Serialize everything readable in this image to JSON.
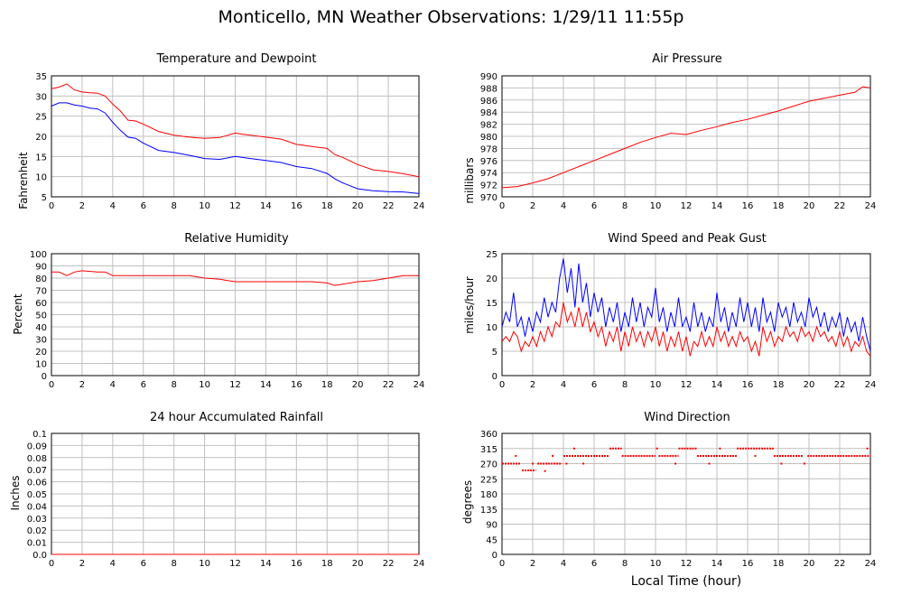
{
  "title": "Monticello, MN Weather Observations: 1/29/11 11:55p",
  "xaxis_label": "Local Time (hour)",
  "colors": {
    "primary_series": "#ff0000",
    "secondary_series": "#0000ff",
    "grid": "#c0c0c0"
  },
  "chart_data": [
    {
      "type": "line",
      "title": "Temperature and Dewpoint",
      "ylabel": "Fahrenheit",
      "xlabel": "",
      "xlim": [
        0,
        24
      ],
      "ylim": [
        5,
        35
      ],
      "xticks": [
        0,
        2,
        4,
        6,
        8,
        10,
        12,
        14,
        16,
        18,
        20,
        22,
        24
      ],
      "yticks": [
        5,
        10,
        15,
        20,
        25,
        30,
        35
      ],
      "grid": true,
      "series": [
        {
          "color": "#ff0000",
          "x": [
            0,
            0.5,
            1,
            1.5,
            2,
            2.5,
            3,
            3.5,
            4,
            4.5,
            5,
            5.5,
            6,
            7,
            8,
            9,
            10,
            11,
            12,
            12.5,
            13,
            14,
            15,
            16,
            17,
            18,
            18.5,
            19,
            20,
            21,
            22,
            23,
            24
          ],
          "values": [
            31.8,
            32.2,
            33,
            31.5,
            31,
            30.8,
            30.7,
            30,
            28,
            26.3,
            24,
            23.8,
            23,
            21.2,
            20.3,
            19.8,
            19.5,
            19.7,
            20.8,
            20.5,
            20.3,
            19.8,
            19.3,
            18,
            17.5,
            17,
            15.5,
            14.8,
            13,
            11.7,
            11.3,
            10.7,
            10
          ]
        },
        {
          "color": "#0000ff",
          "x": [
            0,
            0.5,
            1,
            1.5,
            2,
            2.5,
            3,
            3.5,
            4,
            4.5,
            5,
            5.5,
            6,
            7,
            8,
            9,
            10,
            11,
            12,
            13,
            14,
            15,
            16,
            17,
            18,
            18.5,
            19,
            20,
            21,
            22,
            23,
            24
          ],
          "values": [
            27.5,
            28.3,
            28.3,
            27.8,
            27.5,
            27,
            26.8,
            25.8,
            23.5,
            21.5,
            19.8,
            19.5,
            18.3,
            16.5,
            16,
            15.3,
            14.5,
            14.3,
            15,
            14.5,
            14,
            13.5,
            12.5,
            12,
            10.8,
            9.5,
            8.5,
            7,
            6.5,
            6.3,
            6.2,
            5.8
          ]
        }
      ]
    },
    {
      "type": "line",
      "title": "Air Pressure",
      "ylabel": "millibars",
      "xlabel": "",
      "xlim": [
        0,
        24
      ],
      "ylim": [
        970,
        990
      ],
      "xticks": [
        0,
        2,
        4,
        6,
        8,
        10,
        12,
        14,
        16,
        18,
        20,
        22,
        24
      ],
      "yticks": [
        970,
        972,
        974,
        976,
        978,
        980,
        982,
        984,
        986,
        988,
        990
      ],
      "grid": true,
      "series": [
        {
          "color": "#ff0000",
          "x": [
            0,
            1,
            2,
            3,
            4,
            5,
            6,
            7,
            8,
            9,
            10,
            11,
            12,
            13,
            14,
            15,
            16,
            17,
            18,
            19,
            20,
            21,
            22,
            23,
            23.5,
            24
          ],
          "values": [
            971.5,
            971.7,
            972.3,
            973,
            974,
            975,
            976,
            977,
            978,
            979,
            979.8,
            980.5,
            980.3,
            981,
            981.6,
            982.3,
            982.8,
            983.5,
            984.2,
            985,
            985.8,
            986.3,
            986.8,
            987.3,
            988.2,
            988
          ]
        }
      ]
    },
    {
      "type": "line",
      "title": "Relative Humidity",
      "ylabel": "Percent",
      "xlabel": "",
      "xlim": [
        0,
        24
      ],
      "ylim": [
        0,
        100
      ],
      "xticks": [
        0,
        2,
        4,
        6,
        8,
        10,
        12,
        14,
        16,
        18,
        20,
        22,
        24
      ],
      "yticks": [
        0,
        10,
        20,
        30,
        40,
        50,
        60,
        70,
        80,
        90,
        100
      ],
      "grid": true,
      "series": [
        {
          "color": "#ff0000",
          "x": [
            0,
            0.5,
            1,
            1.5,
            2,
            3,
            3.5,
            4,
            5,
            6,
            7,
            8,
            9,
            10,
            11,
            11.5,
            12,
            13,
            14,
            15,
            16,
            17,
            18,
            18.5,
            19,
            20,
            21,
            22,
            23,
            24
          ],
          "values": [
            85,
            85,
            82,
            85,
            86,
            85,
            85,
            82,
            82,
            82,
            82,
            82,
            82,
            80,
            79,
            78,
            77,
            77,
            77,
            77,
            77,
            77,
            76,
            74,
            75,
            77,
            78,
            80,
            82,
            82
          ]
        }
      ]
    },
    {
      "type": "line",
      "title": "Wind Speed and Peak Gust",
      "ylabel": "miles/hour",
      "xlabel": "",
      "xlim": [
        0,
        24
      ],
      "ylim": [
        0,
        25
      ],
      "xticks": [
        0,
        2,
        4,
        6,
        8,
        10,
        12,
        14,
        16,
        18,
        20,
        22,
        24
      ],
      "yticks": [
        0,
        5,
        10,
        15,
        20,
        25
      ],
      "grid": true,
      "series": [
        {
          "color": "#0000ff",
          "x": [
            0,
            0.25,
            0.5,
            0.75,
            1,
            1.25,
            1.5,
            1.75,
            2,
            2.25,
            2.5,
            2.75,
            3,
            3.25,
            3.5,
            3.75,
            4,
            4.25,
            4.5,
            4.75,
            5,
            5.25,
            5.5,
            5.75,
            6,
            6.25,
            6.5,
            6.75,
            7,
            7.25,
            7.5,
            7.75,
            8,
            8.25,
            8.5,
            8.75,
            9,
            9.25,
            9.5,
            9.75,
            10,
            10.25,
            10.5,
            10.75,
            11,
            11.25,
            11.5,
            11.75,
            12,
            12.25,
            12.5,
            12.75,
            13,
            13.25,
            13.5,
            13.75,
            14,
            14.25,
            14.5,
            14.75,
            15,
            15.25,
            15.5,
            15.75,
            16,
            16.25,
            16.5,
            16.75,
            17,
            17.25,
            17.5,
            17.75,
            18,
            18.25,
            18.5,
            18.75,
            19,
            19.25,
            19.5,
            19.75,
            20,
            20.25,
            20.5,
            20.75,
            21,
            21.25,
            21.5,
            21.75,
            22,
            22.25,
            22.5,
            22.75,
            23,
            23.25,
            23.5,
            23.75,
            24
          ],
          "values": [
            10,
            13,
            11,
            17,
            10,
            12,
            8,
            12,
            9,
            13,
            11,
            16,
            12,
            15,
            13,
            20,
            24,
            17,
            22,
            14,
            23,
            15,
            19,
            12,
            17,
            13,
            16,
            10,
            14,
            11,
            15,
            9,
            13,
            10,
            16,
            11,
            15,
            10,
            14,
            12,
            18,
            11,
            14,
            9,
            13,
            10,
            16,
            10,
            12,
            9,
            15,
            10,
            13,
            9,
            12,
            10,
            17,
            11,
            14,
            9,
            13,
            10,
            16,
            11,
            15,
            10,
            14,
            9,
            16,
            11,
            13,
            9,
            15,
            12,
            14,
            10,
            15,
            11,
            13,
            10,
            16,
            12,
            14,
            10,
            13,
            9,
            12,
            10,
            13,
            8,
            12,
            9,
            11,
            7,
            12,
            8,
            5
          ]
        },
        {
          "color": "#ff0000",
          "x": [
            0,
            0.25,
            0.5,
            0.75,
            1,
            1.25,
            1.5,
            1.75,
            2,
            2.25,
            2.5,
            2.75,
            3,
            3.25,
            3.5,
            3.75,
            4,
            4.25,
            4.5,
            4.75,
            5,
            5.25,
            5.5,
            5.75,
            6,
            6.25,
            6.5,
            6.75,
            7,
            7.25,
            7.5,
            7.75,
            8,
            8.25,
            8.5,
            8.75,
            9,
            9.25,
            9.5,
            9.75,
            10,
            10.25,
            10.5,
            10.75,
            11,
            11.25,
            11.5,
            11.75,
            12,
            12.25,
            12.5,
            12.75,
            13,
            13.25,
            13.5,
            13.75,
            14,
            14.25,
            14.5,
            14.75,
            15,
            15.25,
            15.5,
            15.75,
            16,
            16.25,
            16.5,
            16.75,
            17,
            17.25,
            17.5,
            17.75,
            18,
            18.25,
            18.5,
            18.75,
            19,
            19.25,
            19.5,
            19.75,
            20,
            20.25,
            20.5,
            20.75,
            21,
            21.25,
            21.5,
            21.75,
            22,
            22.25,
            22.5,
            22.75,
            23,
            23.25,
            23.5,
            23.75,
            24
          ],
          "values": [
            7,
            8,
            7,
            9,
            8,
            5,
            7,
            6,
            8,
            6,
            9,
            7,
            10,
            8,
            11,
            10,
            15,
            11,
            13,
            10,
            14,
            10,
            13,
            9,
            11,
            8,
            10,
            6,
            9,
            7,
            10,
            5,
            9,
            6,
            10,
            7,
            9,
            6,
            9,
            7,
            10,
            6,
            9,
            5,
            8,
            6,
            9,
            5,
            8,
            4,
            7,
            6,
            9,
            6,
            8,
            6,
            10,
            7,
            9,
            6,
            8,
            6,
            9,
            7,
            8,
            5,
            7,
            4,
            10,
            7,
            9,
            6,
            8,
            7,
            10,
            8,
            9,
            7,
            10,
            8,
            9,
            7,
            10,
            8,
            9,
            7,
            8,
            6,
            9,
            6,
            8,
            5,
            7,
            6,
            8,
            5,
            4
          ]
        }
      ]
    },
    {
      "type": "line",
      "title": "24 hour Accumulated Rainfall",
      "ylabel": "Inches",
      "xlabel": "",
      "xlim": [
        0,
        24
      ],
      "ylim": [
        0,
        0.1
      ],
      "xticks": [
        0,
        2,
        4,
        6,
        8,
        10,
        12,
        14,
        16,
        18,
        20,
        22,
        24
      ],
      "yticks": [
        "0.0",
        "0.01",
        "0.02",
        "0.03",
        "0.04",
        "0.05",
        "0.06",
        "0.07",
        "0.08",
        "0.09",
        "0.1"
      ],
      "grid": true,
      "series": [
        {
          "color": "#ff0000",
          "x": [
            0,
            24
          ],
          "values": [
            0,
            0
          ]
        }
      ]
    },
    {
      "type": "scatter",
      "title": "Wind Direction",
      "ylabel": "degrees",
      "xlabel": "Local Time (hour)",
      "xlim": [
        0,
        24
      ],
      "ylim": [
        0,
        360
      ],
      "xticks": [
        0,
        2,
        4,
        6,
        8,
        10,
        12,
        14,
        16,
        18,
        20,
        22,
        24
      ],
      "yticks": [
        0,
        45,
        90,
        135,
        180,
        225,
        270,
        315,
        360
      ],
      "grid": true,
      "segments": [
        {
          "x0": 0.0,
          "x1": 1.2,
          "y": 270
        },
        {
          "x0": 1.3,
          "x1": 2.2,
          "y": 250
        },
        {
          "x0": 2.3,
          "x1": 3.9,
          "y": 270
        },
        {
          "x0": 4.0,
          "x1": 7.0,
          "y": 293
        },
        {
          "x0": 7.0,
          "x1": 7.8,
          "y": 315
        },
        {
          "x0": 7.8,
          "x1": 10.0,
          "y": 293
        },
        {
          "x0": 10.2,
          "x1": 11.5,
          "y": 293
        },
        {
          "x0": 11.5,
          "x1": 12.7,
          "y": 315
        },
        {
          "x0": 12.7,
          "x1": 15.3,
          "y": 293
        },
        {
          "x0": 15.3,
          "x1": 17.7,
          "y": 315
        },
        {
          "x0": 17.7,
          "x1": 19.6,
          "y": 293
        },
        {
          "x0": 19.9,
          "x1": 24.0,
          "y": 293
        }
      ],
      "points": [
        {
          "x": 0.9,
          "y": 293
        },
        {
          "x": 2.0,
          "y": 270
        },
        {
          "x": 2.8,
          "y": 248
        },
        {
          "x": 3.3,
          "y": 293
        },
        {
          "x": 3.6,
          "y": 270
        },
        {
          "x": 4.2,
          "y": 270
        },
        {
          "x": 4.7,
          "y": 315
        },
        {
          "x": 5.3,
          "y": 270
        },
        {
          "x": 10.1,
          "y": 315
        },
        {
          "x": 11.3,
          "y": 270
        },
        {
          "x": 13.5,
          "y": 270
        },
        {
          "x": 14.2,
          "y": 315
        },
        {
          "x": 16.5,
          "y": 293
        },
        {
          "x": 18.2,
          "y": 270
        },
        {
          "x": 19.7,
          "y": 270
        },
        {
          "x": 23.8,
          "y": 315
        }
      ]
    }
  ]
}
